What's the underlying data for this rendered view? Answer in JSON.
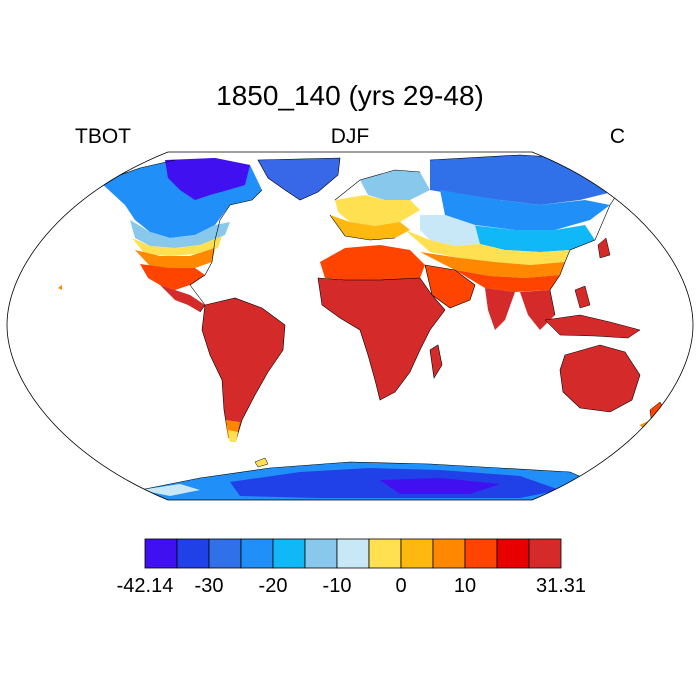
{
  "header": {
    "title": "1850_140 (yrs 29-48)",
    "left_label": "TBOT",
    "center_label": "DJF",
    "right_label": "C"
  },
  "colorbar": {
    "colors": [
      "#4010f0",
      "#2040e8",
      "#3070e8",
      "#2090f8",
      "#10b8f8",
      "#88c8ec",
      "#c8e8f8",
      "#ffe050",
      "#ffb810",
      "#ff8800",
      "#ff4400",
      "#e80000",
      "#d42a2a"
    ],
    "labels": [
      {
        "text": "-42.14",
        "boundary": 0
      },
      {
        "text": "-30",
        "boundary": 1
      },
      {
        "text": "-20",
        "boundary": 2
      },
      {
        "text": "-10",
        "boundary": 3
      },
      {
        "text": "0",
        "boundary": 4
      },
      {
        "text": "10",
        "boundary": 5
      },
      {
        "text": "31.31",
        "boundary": 6
      }
    ]
  }
}
